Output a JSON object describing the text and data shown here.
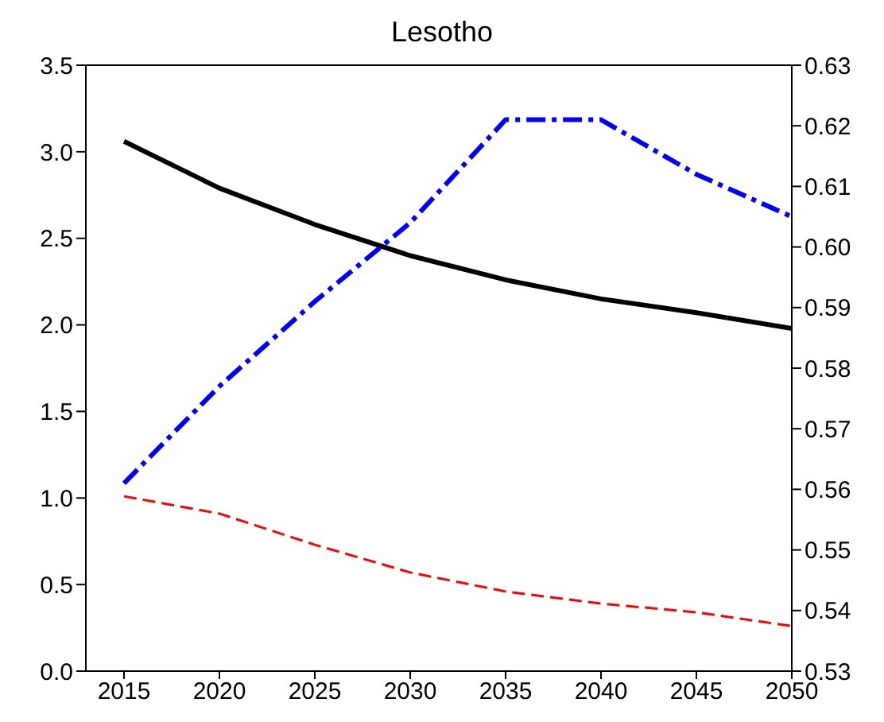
{
  "chart_data": {
    "type": "line",
    "title": "Lesotho",
    "x": [
      2015,
      2020,
      2025,
      2030,
      2035,
      2040,
      2045,
      2050
    ],
    "xlim": [
      2013,
      2050
    ],
    "xticks": [
      2015,
      2020,
      2025,
      2030,
      2035,
      2040,
      2045,
      2050
    ],
    "ylim": [
      0,
      3.5
    ],
    "yticks": [
      {
        "value": 0,
        "label": "0.0"
      },
      0.5,
      {
        "value": 1,
        "label": "1.0"
      },
      1.5,
      {
        "value": 2,
        "label": "2.0"
      },
      2.5,
      {
        "value": 3,
        "label": "3.0"
      },
      3.5
    ],
    "y2lim": [
      0.53,
      0.63
    ],
    "y2ticks": [
      0.53,
      0.54,
      0.55,
      0.56,
      0.57,
      0.58,
      0.59,
      {
        "value": 0.6,
        "label": "0.60"
      },
      0.61,
      0.62,
      0.63
    ],
    "marker": "none",
    "series": [
      {
        "color": "#000000",
        "line_style": "solid",
        "values": [
          3.06,
          2.79,
          2.58,
          2.4,
          2.26,
          2.15,
          2.07,
          1.98
        ]
      },
      {
        "color": "#ff0000",
        "line_style": "dashed",
        "values": [
          1.01,
          0.91,
          0.73,
          0.57,
          0.46,
          0.39,
          0.34,
          0.26
        ]
      },
      {
        "color": "#0000ff",
        "line_style": "dashdot",
        "axis": "y2",
        "values": [
          0.561,
          0.577,
          0.591,
          0.604,
          0.621,
          0.621,
          0.612,
          0.605
        ]
      }
    ]
  }
}
